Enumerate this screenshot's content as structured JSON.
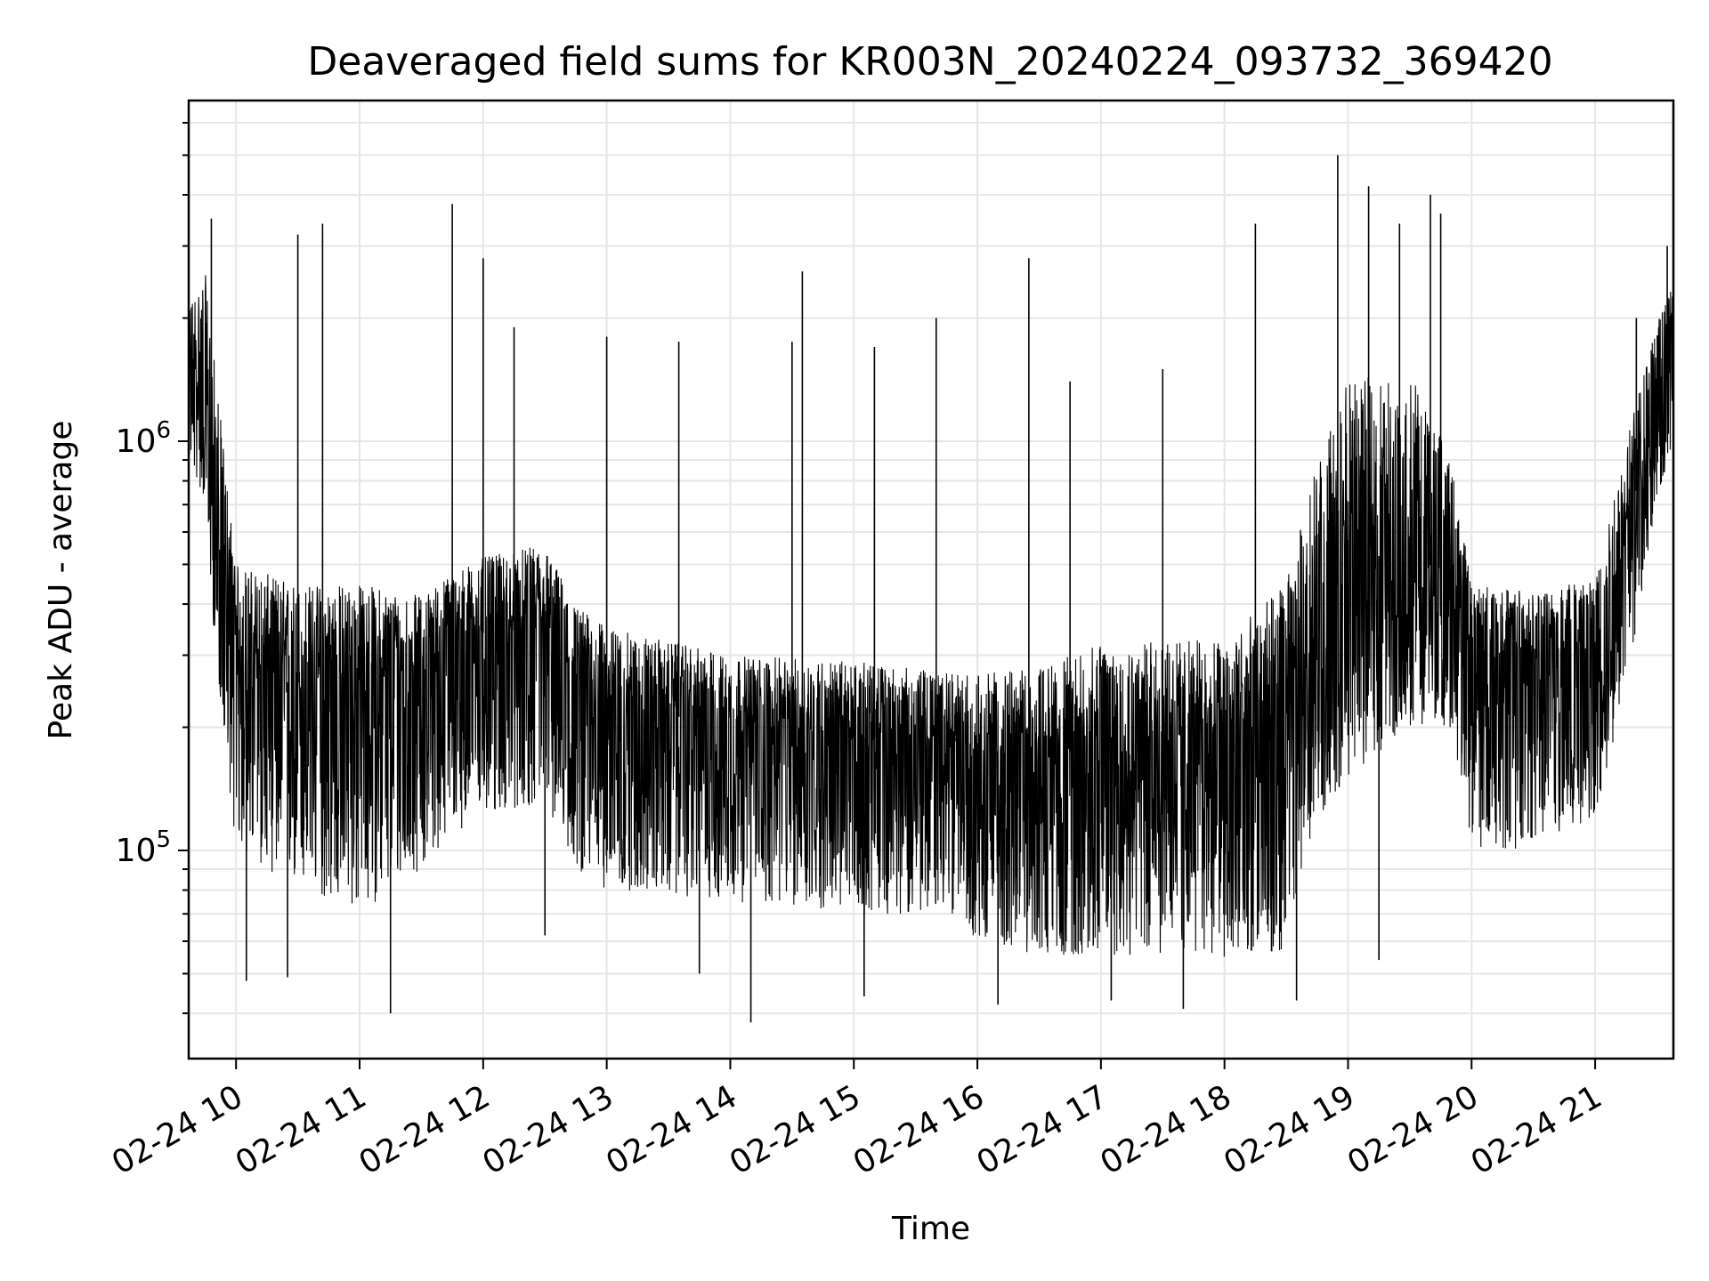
{
  "chart_data": {
    "type": "line",
    "title": "Deaveraged field sums for KR003N_20240224_093732_369420",
    "xlabel": "Time",
    "ylabel": "Peak ADU - average",
    "yscale": "log",
    "grid": true,
    "line_color": "#000000",
    "grid_color": "#e6e6e6",
    "xlim": [
      "2024-02-24 09:37",
      "2024-02-24 21:38"
    ],
    "ylim": [
      31000,
      6800000
    ],
    "x_ticks": [
      {
        "t": "2024-02-24 10:00",
        "label": "02-24 10"
      },
      {
        "t": "2024-02-24 11:00",
        "label": "02-24 11"
      },
      {
        "t": "2024-02-24 12:00",
        "label": "02-24 12"
      },
      {
        "t": "2024-02-24 13:00",
        "label": "02-24 13"
      },
      {
        "t": "2024-02-24 14:00",
        "label": "02-24 14"
      },
      {
        "t": "2024-02-24 15:00",
        "label": "02-24 15"
      },
      {
        "t": "2024-02-24 16:00",
        "label": "02-24 16"
      },
      {
        "t": "2024-02-24 17:00",
        "label": "02-24 17"
      },
      {
        "t": "2024-02-24 18:00",
        "label": "02-24 18"
      },
      {
        "t": "2024-02-24 19:00",
        "label": "02-24 19"
      },
      {
        "t": "2024-02-24 20:00",
        "label": "02-24 20"
      },
      {
        "t": "2024-02-24 21:00",
        "label": "02-24 21"
      }
    ],
    "y_ticks": [
      {
        "value": 100000,
        "base": "10",
        "exp": "5"
      },
      {
        "value": 1000000,
        "base": "10",
        "exp": "6"
      }
    ],
    "envelope": [
      {
        "t": "2024-02-24 09:37",
        "median": 1500000,
        "low": 900000,
        "high": 2200000
      },
      {
        "t": "2024-02-24 09:45",
        "median": 1300000,
        "low": 700000,
        "high": 2600000
      },
      {
        "t": "2024-02-24 09:50",
        "median": 600000,
        "low": 300000,
        "high": 1500000
      },
      {
        "t": "2024-02-24 10:00",
        "median": 300000,
        "low": 100000,
        "high": 500000
      },
      {
        "t": "2024-02-24 10:30",
        "median": 250000,
        "low": 80000,
        "high": 450000
      },
      {
        "t": "2024-02-24 11:00",
        "median": 260000,
        "low": 70000,
        "high": 450000
      },
      {
        "t": "2024-02-24 11:30",
        "median": 280000,
        "low": 90000,
        "high": 420000
      },
      {
        "t": "2024-02-24 11:45",
        "median": 320000,
        "low": 110000,
        "high": 480000
      },
      {
        "t": "2024-02-24 12:00",
        "median": 340000,
        "low": 120000,
        "high": 520000
      },
      {
        "t": "2024-02-24 12:30",
        "median": 350000,
        "low": 130000,
        "high": 560000
      },
      {
        "t": "2024-02-24 12:45",
        "median": 250000,
        "low": 90000,
        "high": 400000
      },
      {
        "t": "2024-02-24 13:00",
        "median": 230000,
        "low": 80000,
        "high": 350000
      },
      {
        "t": "2024-02-24 14:00",
        "median": 200000,
        "low": 75000,
        "high": 300000
      },
      {
        "t": "2024-02-24 15:00",
        "median": 190000,
        "low": 70000,
        "high": 290000
      },
      {
        "t": "2024-02-24 15:50",
        "median": 180000,
        "low": 70000,
        "high": 270000
      },
      {
        "t": "2024-02-24 16:00",
        "median": 170000,
        "low": 60000,
        "high": 270000
      },
      {
        "t": "2024-02-24 16:30",
        "median": 160000,
        "low": 55000,
        "high": 280000
      },
      {
        "t": "2024-02-24 17:00",
        "median": 190000,
        "low": 55000,
        "high": 320000
      },
      {
        "t": "2024-02-24 18:00",
        "median": 180000,
        "low": 55000,
        "high": 330000
      },
      {
        "t": "2024-02-24 18:30",
        "median": 200000,
        "low": 55000,
        "high": 450000
      },
      {
        "t": "2024-02-24 18:45",
        "median": 350000,
        "low": 120000,
        "high": 900000
      },
      {
        "t": "2024-02-24 19:00",
        "median": 500000,
        "low": 150000,
        "high": 1400000
      },
      {
        "t": "2024-02-24 19:30",
        "median": 550000,
        "low": 200000,
        "high": 1500000
      },
      {
        "t": "2024-02-24 19:50",
        "median": 450000,
        "low": 200000,
        "high": 900000
      },
      {
        "t": "2024-02-24 20:00",
        "median": 300000,
        "low": 100000,
        "high": 450000
      },
      {
        "t": "2024-02-24 20:30",
        "median": 290000,
        "low": 100000,
        "high": 430000
      },
      {
        "t": "2024-02-24 21:00",
        "median": 300000,
        "low": 120000,
        "high": 480000
      },
      {
        "t": "2024-02-24 21:15",
        "median": 600000,
        "low": 250000,
        "high": 1000000
      },
      {
        "t": "2024-02-24 21:30",
        "median": 1200000,
        "low": 700000,
        "high": 2000000
      },
      {
        "t": "2024-02-24 21:38",
        "median": 1600000,
        "low": 1000000,
        "high": 2400000
      }
    ],
    "spikes": [
      {
        "t": "2024-02-24 09:48",
        "value": 3500000
      },
      {
        "t": "2024-02-24 10:30",
        "value": 3200000
      },
      {
        "t": "2024-02-24 10:42",
        "value": 3400000
      },
      {
        "t": "2024-02-24 11:45",
        "value": 3800000
      },
      {
        "t": "2024-02-24 12:00",
        "value": 2800000
      },
      {
        "t": "2024-02-24 12:15",
        "value": 1900000
      },
      {
        "t": "2024-02-24 13:00",
        "value": 1800000
      },
      {
        "t": "2024-02-24 13:35",
        "value": 1750000
      },
      {
        "t": "2024-02-24 14:30",
        "value": 1750000
      },
      {
        "t": "2024-02-24 14:35",
        "value": 2600000
      },
      {
        "t": "2024-02-24 15:10",
        "value": 1700000
      },
      {
        "t": "2024-02-24 15:40",
        "value": 2000000
      },
      {
        "t": "2024-02-24 16:25",
        "value": 2800000
      },
      {
        "t": "2024-02-24 16:45",
        "value": 1400000
      },
      {
        "t": "2024-02-24 17:30",
        "value": 1500000
      },
      {
        "t": "2024-02-24 18:15",
        "value": 3400000
      },
      {
        "t": "2024-02-24 18:55",
        "value": 5000000
      },
      {
        "t": "2024-02-24 19:10",
        "value": 4200000
      },
      {
        "t": "2024-02-24 19:25",
        "value": 3400000
      },
      {
        "t": "2024-02-24 19:40",
        "value": 4000000
      },
      {
        "t": "2024-02-24 19:45",
        "value": 3600000
      },
      {
        "t": "2024-02-24 21:20",
        "value": 2000000
      },
      {
        "t": "2024-02-24 21:35",
        "value": 3000000
      }
    ],
    "dips": [
      {
        "t": "2024-02-24 10:05",
        "value": 48000
      },
      {
        "t": "2024-02-24 10:25",
        "value": 49000
      },
      {
        "t": "2024-02-24 11:15",
        "value": 40000
      },
      {
        "t": "2024-02-24 12:30",
        "value": 62000
      },
      {
        "t": "2024-02-24 13:45",
        "value": 50000
      },
      {
        "t": "2024-02-24 14:10",
        "value": 38000
      },
      {
        "t": "2024-02-24 15:05",
        "value": 44000
      },
      {
        "t": "2024-02-24 16:10",
        "value": 42000
      },
      {
        "t": "2024-02-24 17:05",
        "value": 43000
      },
      {
        "t": "2024-02-24 17:40",
        "value": 41000
      },
      {
        "t": "2024-02-24 18:35",
        "value": 43000
      },
      {
        "t": "2024-02-24 19:15",
        "value": 54000
      }
    ]
  }
}
